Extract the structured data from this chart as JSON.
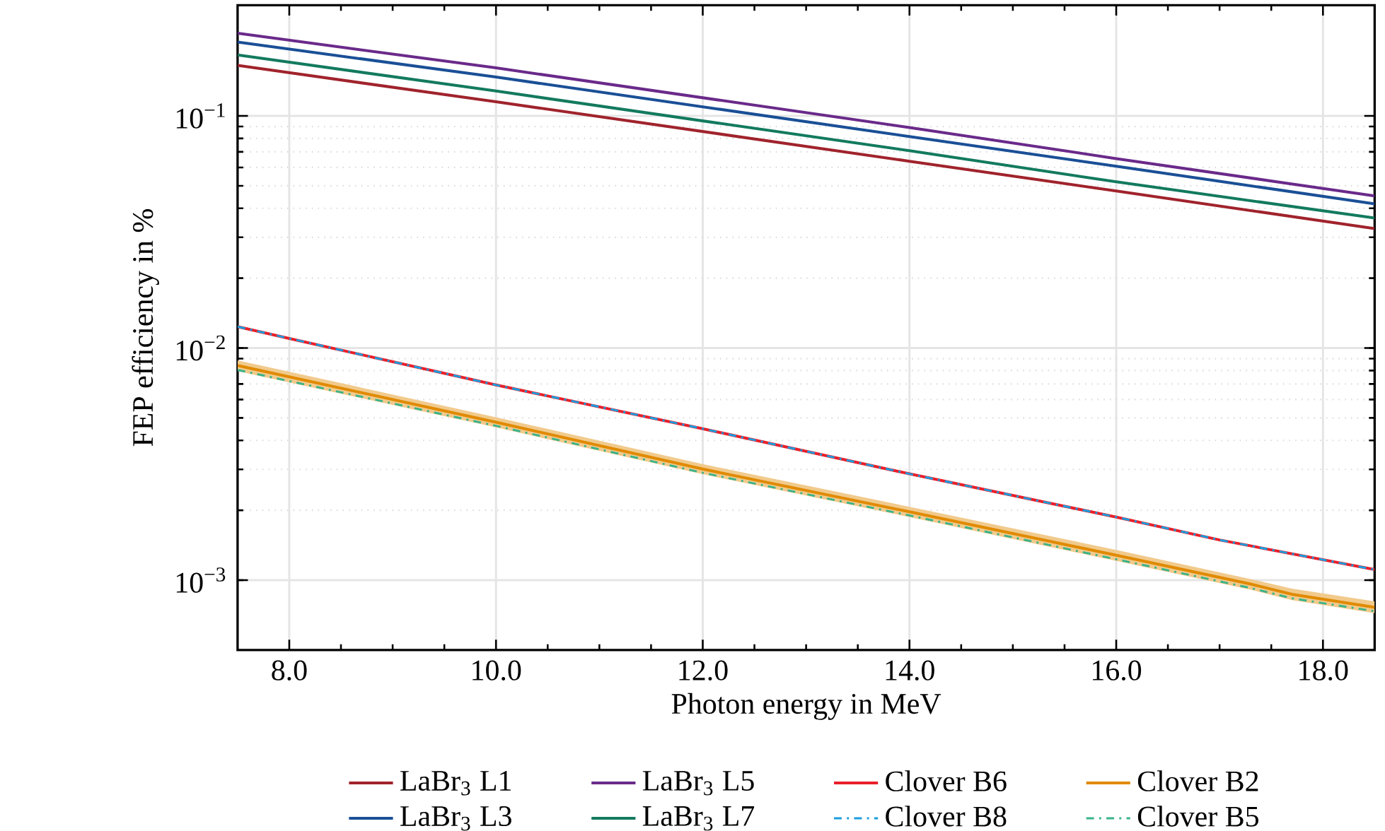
{
  "chart_data": {
    "type": "line",
    "xlabel": "Photon energy in MeV",
    "ylabel": "FEP efficiency in %",
    "xlim": [
      7.5,
      18.5
    ],
    "ylim": [
      0.0005,
      0.3
    ],
    "log": "y",
    "grid": true,
    "legend": "bottom",
    "xticks": [
      {
        "value": 8,
        "label": "8.0"
      },
      {
        "value": 10,
        "label": "10.0"
      },
      {
        "value": 12,
        "label": "12.0"
      },
      {
        "value": 14,
        "label": "14.0"
      },
      {
        "value": 16,
        "label": "16.0"
      },
      {
        "value": 18,
        "label": "18.0"
      }
    ],
    "yticks": [
      {
        "value": 0.001,
        "label": "10$^{−3}$"
      },
      {
        "value": 0.01,
        "label": "10$^{−2}$"
      },
      {
        "value": 0.1,
        "label": "10$^{−1}$"
      }
    ],
    "series": [
      {
        "name": "LaBr$_{3}$ L1",
        "color": "#a0232c",
        "line_style": "solid",
        "x": [
          7.5,
          10,
          14,
          16,
          18.5
        ],
        "values": [
          0.165,
          0.115,
          0.0638,
          0.0475,
          0.0327
        ]
      },
      {
        "name": "LaBr$_{3}$ L3",
        "color": "#1a4f96",
        "line_style": "solid",
        "x": [
          7.5,
          10,
          14,
          16,
          18.5
        ],
        "values": [
          0.208,
          0.147,
          0.0815,
          0.0607,
          0.0418
        ]
      },
      {
        "name": "LaBr$_{3}$ L5",
        "color": "#6a2a8a",
        "line_style": "solid",
        "x": [
          7.5,
          10,
          14,
          16,
          18.5
        ],
        "values": [
          0.227,
          0.161,
          0.0891,
          0.0655,
          0.0452
        ]
      },
      {
        "name": "LaBr$_{3}$ L7",
        "color": "#137a5e",
        "line_style": "solid",
        "x": [
          7.5,
          10,
          14,
          16,
          18.5
        ],
        "values": [
          0.183,
          0.128,
          0.0708,
          0.052,
          0.0363
        ]
      },
      {
        "name": "Clover B6",
        "color": "#e8202a",
        "line_style": "solid",
        "x": [
          7.5,
          8,
          10,
          12,
          14,
          16,
          17,
          18.5
        ],
        "values": [
          0.01236,
          0.011,
          0.00693,
          0.00449,
          0.00287,
          0.00187,
          0.00149,
          0.00111
        ]
      },
      {
        "name": "Clover B8",
        "color": "#1a9ee0",
        "line_style": "dashdot",
        "x": [
          7.5,
          8,
          10,
          12,
          14,
          16,
          17,
          18.5
        ],
        "values": [
          0.01236,
          0.011,
          0.00693,
          0.00449,
          0.00287,
          0.00187,
          0.00149,
          0.00111
        ]
      },
      {
        "name": "Clover B2",
        "color": "#e08a00",
        "line_style": "solid",
        "x": [
          7.5,
          10,
          12,
          14,
          16,
          17.3,
          17.7,
          18.5
        ],
        "values": [
          0.00841,
          0.00479,
          0.00301,
          0.00197,
          0.00128,
          0.000962,
          0.000869,
          0.000764
        ],
        "lower": [
          0.00795,
          0.00455,
          0.00286,
          0.00187,
          0.00121,
          0.00091,
          0.00082,
          0.00072
        ],
        "upper": [
          0.00885,
          0.00503,
          0.00316,
          0.00207,
          0.00135,
          0.00101,
          0.00092,
          0.00081
        ]
      },
      {
        "name": "Clover B5",
        "color": "#3bb38a",
        "line_style": "dashdot",
        "x": [
          7.5,
          10,
          12,
          14,
          16,
          17.3,
          17.7,
          18.5
        ],
        "values": [
          0.00805,
          0.00462,
          0.0029,
          0.0019,
          0.00123,
          0.000925,
          0.000835,
          0.000735
        ]
      }
    ]
  }
}
